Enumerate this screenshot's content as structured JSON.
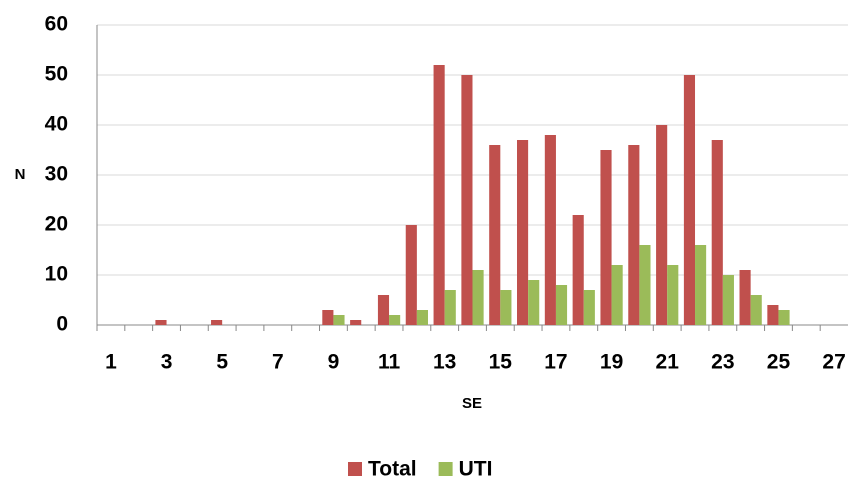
{
  "chart_data": {
    "type": "bar",
    "x_label": "SE",
    "y_label": "N",
    "categories": [
      "1",
      null,
      "3",
      null,
      "5",
      null,
      "7",
      null,
      "9",
      null,
      "11",
      null,
      "13",
      null,
      "15",
      null,
      "17",
      null,
      "19",
      null,
      "21",
      null,
      "23",
      null,
      "25",
      null,
      "27"
    ],
    "series": [
      {
        "name": "Total",
        "color": "#c0504d",
        "values": [
          0,
          0,
          1,
          0,
          1,
          0,
          0,
          0,
          3,
          1,
          6,
          20,
          52,
          50,
          36,
          37,
          38,
          22,
          35,
          36,
          40,
          50,
          37,
          11,
          4,
          0,
          0
        ]
      },
      {
        "name": "UTI",
        "color": "#9bbb59",
        "values": [
          0,
          0,
          0,
          0,
          0,
          0,
          0,
          0,
          2,
          0,
          2,
          3,
          7,
          11,
          7,
          9,
          8,
          7,
          12,
          16,
          12,
          16,
          10,
          6,
          3,
          0,
          0
        ]
      }
    ],
    "ylim": [
      0,
      60
    ],
    "yticks": [
      0,
      10,
      20,
      30,
      40,
      50,
      60
    ],
    "grid": true,
    "legend": "bottom"
  }
}
